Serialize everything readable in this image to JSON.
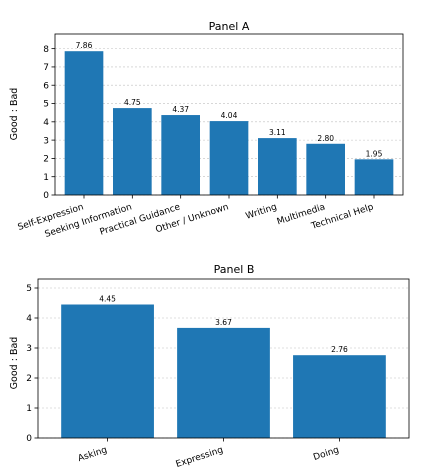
{
  "chart_data": [
    {
      "type": "bar",
      "title": "Panel A",
      "xlabel": "",
      "ylabel": "Good : Bad",
      "categories": [
        "Self-Expression",
        "Seeking Information",
        "Practical Guidance",
        "Other / Unknown",
        "Writing",
        "Multimedia",
        "Technical Help"
      ],
      "values": [
        7.86,
        4.75,
        4.37,
        4.04,
        3.11,
        2.8,
        1.95
      ],
      "value_labels": [
        "7.86",
        "4.75",
        "4.37",
        "4.04",
        "3.11",
        "2.80",
        "1.95"
      ],
      "ylim": [
        0,
        8.8
      ],
      "yticks": [
        0,
        1,
        2,
        3,
        4,
        5,
        6,
        7,
        8
      ],
      "grid": "horizontal dashed",
      "bar_color": "#1f77b4"
    },
    {
      "type": "bar",
      "title": "Panel B",
      "xlabel": "",
      "ylabel": "Good : Bad",
      "categories": [
        "Asking",
        "Expressing",
        "Doing"
      ],
      "values": [
        4.45,
        3.67,
        2.76
      ],
      "value_labels": [
        "4.45",
        "3.67",
        "2.76"
      ],
      "ylim": [
        0,
        5.3
      ],
      "yticks": [
        0,
        1,
        2,
        3,
        4,
        5
      ],
      "grid": "horizontal dashed",
      "bar_color": "#1f77b4"
    }
  ]
}
